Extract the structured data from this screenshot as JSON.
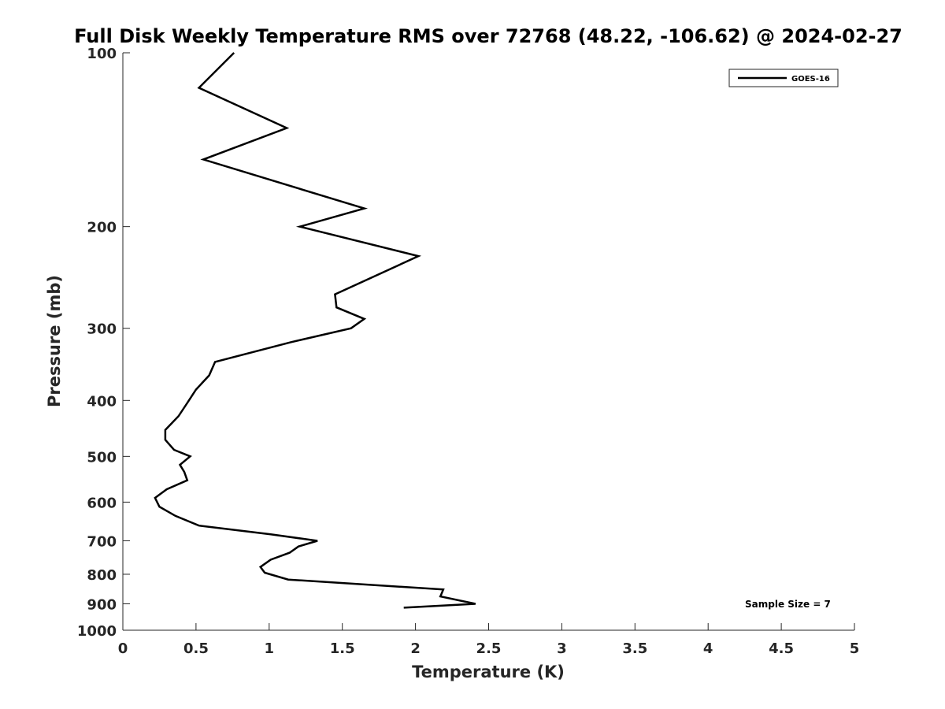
{
  "chart_data": {
    "type": "line",
    "title": "Full Disk Weekly Temperature RMS over 72768 (48.22, -106.62) @ 2024-02-27",
    "xlabel": "Temperature (K)",
    "ylabel": "Pressure (mb)",
    "xlim": [
      0,
      5
    ],
    "ylim": [
      1000,
      100
    ],
    "y_scale": "log",
    "y_reversed": true,
    "x_ticks": [
      "0",
      "0.5",
      "1",
      "1.5",
      "2",
      "2.5",
      "3",
      "3.5",
      "4",
      "4.5",
      "5"
    ],
    "y_ticks": [
      "100",
      "200",
      "300",
      "400",
      "500",
      "600",
      "700",
      "800",
      "900",
      "1000"
    ],
    "grid": false,
    "legend_position": "top-right",
    "series": [
      {
        "name": "GOES-16",
        "color": "#000000",
        "points": [
          [
            0.76,
            100
          ],
          [
            0.52,
            115
          ],
          [
            1.12,
            135
          ],
          [
            0.55,
            153
          ],
          [
            1.65,
            186
          ],
          [
            1.21,
            200
          ],
          [
            2.02,
            225
          ],
          [
            1.45,
            262
          ],
          [
            1.46,
            276
          ],
          [
            1.65,
            289
          ],
          [
            1.56,
            300
          ],
          [
            1.15,
            317
          ],
          [
            0.63,
            343
          ],
          [
            0.59,
            362
          ],
          [
            0.5,
            383
          ],
          [
            0.44,
            404
          ],
          [
            0.38,
            426
          ],
          [
            0.29,
            450
          ],
          [
            0.29,
            468
          ],
          [
            0.35,
            487
          ],
          [
            0.46,
            500
          ],
          [
            0.39,
            517
          ],
          [
            0.42,
            532
          ],
          [
            0.44,
            550
          ],
          [
            0.3,
            570
          ],
          [
            0.22,
            590
          ],
          [
            0.25,
            611
          ],
          [
            0.36,
            634
          ],
          [
            0.52,
            659
          ],
          [
            1.01,
            682
          ],
          [
            1.33,
            700
          ],
          [
            1.2,
            716
          ],
          [
            1.14,
            734
          ],
          [
            1.01,
            755
          ],
          [
            0.94,
            777
          ],
          [
            0.97,
            795
          ],
          [
            1.13,
            817
          ],
          [
            2.19,
            850
          ],
          [
            2.17,
            874
          ],
          [
            2.41,
            900
          ],
          [
            1.92,
            914
          ]
        ]
      }
    ],
    "annotations": [
      "Sample Size = 7"
    ]
  },
  "legend": {
    "label": "GOES-16"
  },
  "annotation": {
    "sample_size": "Sample Size = 7"
  }
}
